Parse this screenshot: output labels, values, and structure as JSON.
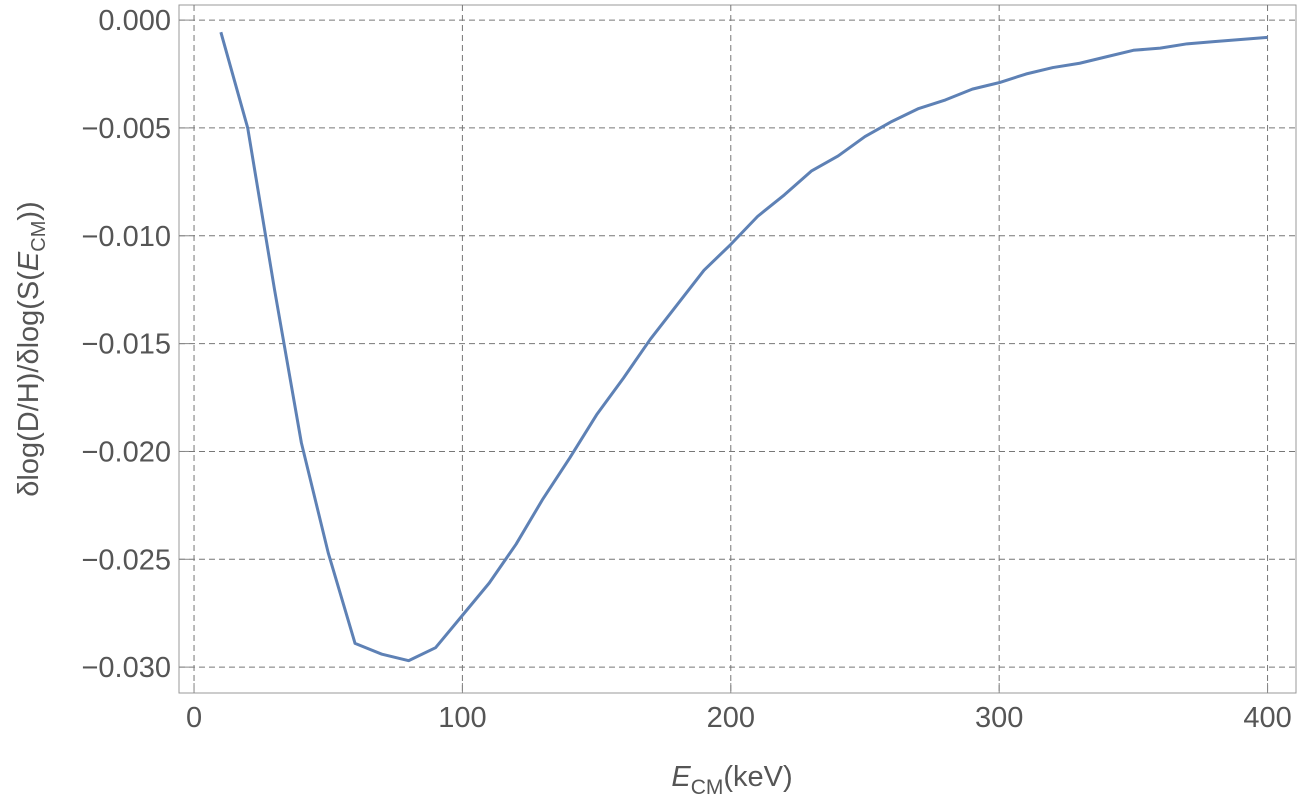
{
  "chart_data": {
    "type": "line",
    "xlabel": [
      "E",
      "CM",
      "(keV)"
    ],
    "ylabel": [
      "δlog(D/H)/δlog(S(",
      "E",
      "CM",
      "))"
    ],
    "x": [
      10,
      20,
      30,
      40,
      50,
      60,
      70,
      80,
      90,
      100,
      110,
      120,
      130,
      140,
      150,
      160,
      170,
      180,
      190,
      200,
      210,
      220,
      230,
      240,
      250,
      260,
      270,
      280,
      290,
      300,
      310,
      320,
      330,
      340,
      350,
      360,
      370,
      380,
      390,
      400
    ],
    "values": [
      -0.00056,
      -0.005,
      -0.0125,
      -0.0196,
      -0.0247,
      -0.0289,
      -0.0294,
      -0.0297,
      -0.0291,
      -0.0276,
      -0.0261,
      -0.0243,
      -0.0222,
      -0.0203,
      -0.0183,
      -0.0166,
      -0.0148,
      -0.0132,
      -0.0116,
      -0.0104,
      -0.0091,
      -0.0081,
      -0.007,
      -0.0063,
      -0.0054,
      -0.0047,
      -0.0041,
      -0.0037,
      -0.0032,
      -0.0029,
      -0.0025,
      -0.0022,
      -0.002,
      -0.0017,
      -0.0014,
      -0.0013,
      -0.0011,
      -0.001,
      -0.0009,
      -0.0008
    ],
    "color": "#5e81b5",
    "xlim": [
      -5.6,
      410.6
    ],
    "ylim": [
      -0.0312,
      0.0007
    ],
    "xticks": [
      0,
      100,
      200,
      300,
      400
    ],
    "yticks": [
      {
        "value": 0,
        "label": "0.000"
      },
      {
        "value": -0.005,
        "label": "−0.005"
      },
      {
        "value": -0.01,
        "label": "−0.010"
      },
      {
        "value": -0.015,
        "label": "−0.015"
      },
      {
        "value": -0.02,
        "label": "−0.020"
      },
      {
        "value": -0.025,
        "label": "−0.025"
      },
      {
        "value": -0.03,
        "label": "−0.030"
      }
    ],
    "grid": true
  }
}
